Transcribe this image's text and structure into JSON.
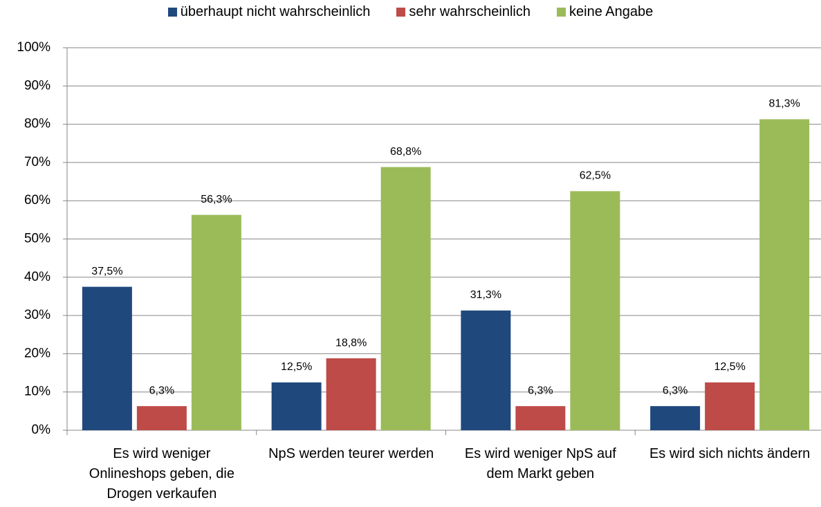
{
  "chart_data": {
    "type": "bar",
    "categories": [
      "Es wird weniger Onlineshops geben, die Drogen verkaufen",
      "NpS werden teurer werden",
      "Es wird weniger NpS auf dem Markt geben",
      "Es wird sich nichts ändern"
    ],
    "series": [
      {
        "name": "überhaupt nicht wahrscheinlich",
        "color": "#1f497d",
        "values": [
          37.5,
          12.5,
          31.3,
          6.3
        ],
        "value_labels": [
          "37,5%",
          "12,5%",
          "31,3%",
          "6,3%"
        ]
      },
      {
        "name": "sehr wahrscheinlich",
        "color": "#be4b48",
        "values": [
          6.3,
          18.8,
          6.3,
          12.5
        ],
        "value_labels": [
          "6,3%",
          "18,8%",
          "6,3%",
          "12,5%"
        ]
      },
      {
        "name": "keine Angabe",
        "color": "#9bbb59",
        "values": [
          56.3,
          68.8,
          62.5,
          81.3
        ],
        "value_labels": [
          "56,3%",
          "68,8%",
          "62,5%",
          "81,3%"
        ]
      }
    ],
    "ylim": [
      0,
      100
    ],
    "yticks": [
      {
        "value": 0,
        "label": "0%"
      },
      {
        "value": 10,
        "label": "10%"
      },
      {
        "value": 20,
        "label": "20%"
      },
      {
        "value": 30,
        "label": "30%"
      },
      {
        "value": 40,
        "label": "40%"
      },
      {
        "value": 50,
        "label": "50%"
      },
      {
        "value": 60,
        "label": "60%"
      },
      {
        "value": 70,
        "label": "70%"
      },
      {
        "value": 80,
        "label": "80%"
      },
      {
        "value": 90,
        "label": "90%"
      },
      {
        "value": 100,
        "label": "100%"
      }
    ],
    "grid": true,
    "legend": "top"
  }
}
